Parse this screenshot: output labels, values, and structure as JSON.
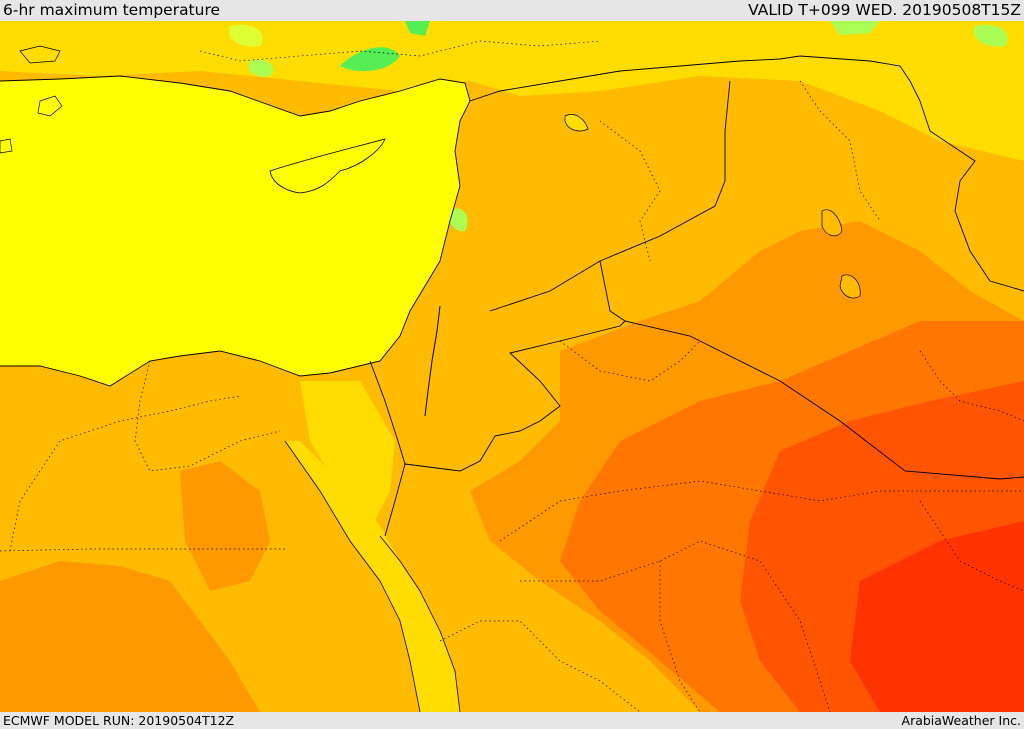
{
  "header": {
    "title": "6-hr maximum temperature",
    "valid": "VALID T+099 WED. 20190508T15Z"
  },
  "footer": {
    "model_run": "ECMWF MODEL RUN: 20190504T12Z",
    "credit": "ArabiaWeather Inc."
  },
  "map": {
    "colors": {
      "green_light": "#aaff55",
      "green": "#55ee55",
      "yellow_green": "#ddff33",
      "yellow": "#ffff00",
      "gold": "#ffdd00",
      "amber": "#ffbb00",
      "orange": "#ff9900",
      "orange_dark": "#ff7700",
      "red_orange": "#ff5500",
      "red": "#ff3300",
      "border": "#000000"
    }
  }
}
